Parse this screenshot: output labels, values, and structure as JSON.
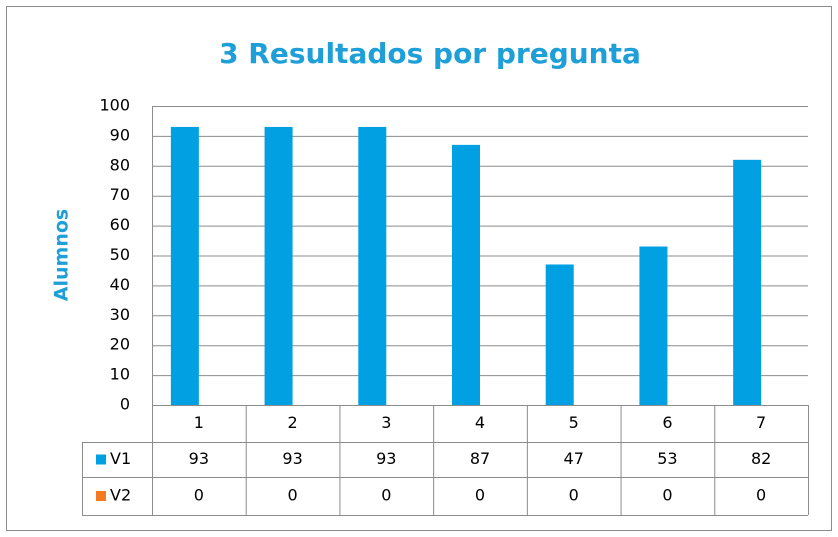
{
  "chart_data": {
    "type": "bar",
    "title": "3 Resultados por pregunta",
    "y_label": "Alumnos",
    "categories": [
      "1",
      "2",
      "3",
      "4",
      "5",
      "6",
      "7"
    ],
    "series": [
      {
        "name": "V1",
        "color": "#00a0e3",
        "values": [
          93,
          93,
          93,
          87,
          47,
          53,
          82
        ]
      },
      {
        "name": "V2",
        "color": "#f47b20",
        "values": [
          0,
          0,
          0,
          0,
          0,
          0,
          0
        ]
      }
    ],
    "ylim": [
      0,
      100
    ],
    "yticks": [
      0,
      10,
      20,
      30,
      40,
      50,
      60,
      70,
      80,
      90,
      100
    ],
    "grid": true
  }
}
